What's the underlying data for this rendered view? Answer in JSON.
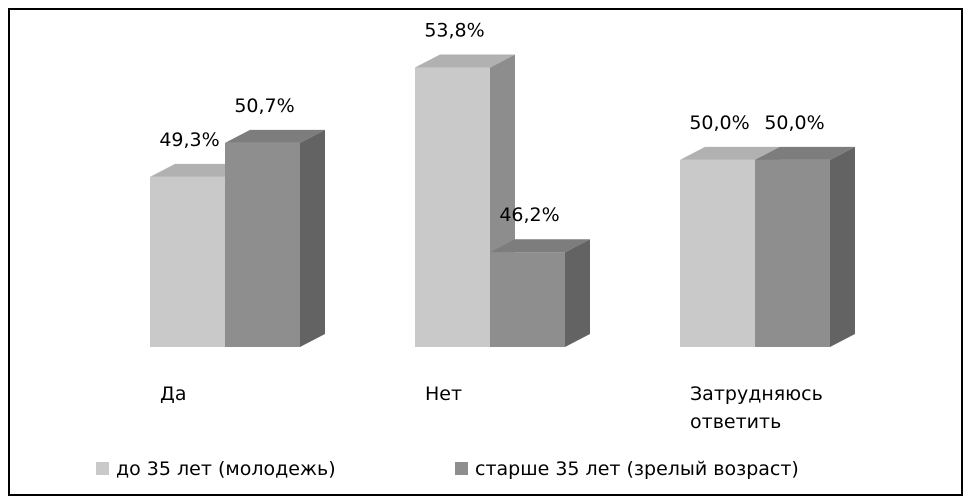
{
  "chart_data": {
    "type": "bar3d",
    "categories": [
      "Да",
      "Нет",
      "Затрудняюсь ответить"
    ],
    "series": [
      {
        "name": "до 35 лет (молодежь)",
        "color": "#c9c9c9",
        "values": [
          49.3,
          53.8,
          50.0
        ],
        "value_labels": [
          "49,3%",
          "53,8%",
          "50,0%"
        ]
      },
      {
        "name": "старше 35 лет (зрелый возраст)",
        "color": "#8e8e8e",
        "values": [
          50.7,
          46.2,
          50.0
        ],
        "value_labels": [
          "50,7%",
          "46,2%",
          "50,0%"
        ]
      }
    ],
    "ylim": [
      42.3,
      56
    ]
  }
}
